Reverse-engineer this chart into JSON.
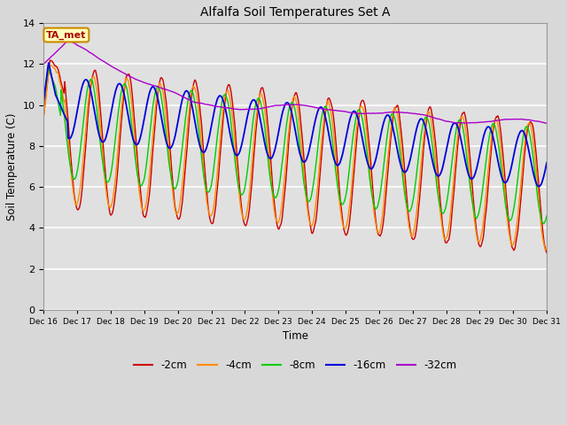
{
  "title": "Alfalfa Soil Temperatures Set A",
  "xlabel": "Time",
  "ylabel": "Soil Temperature (C)",
  "ylim": [
    0,
    14
  ],
  "yticks": [
    0,
    2,
    4,
    6,
    8,
    10,
    12,
    14
  ],
  "fig_bg": "#d8d8d8",
  "plot_bg": "#e0e0e0",
  "colors": {
    "-2cm": "#cc0000",
    "-4cm": "#ff8c00",
    "-8cm": "#00cc00",
    "-16cm": "#0000dd",
    "-32cm": "#aa00cc"
  },
  "annotation_text": "TA_met",
  "annotation_bg": "#ffffbb",
  "annotation_border": "#cc8800",
  "n_points": 720,
  "days": 15
}
